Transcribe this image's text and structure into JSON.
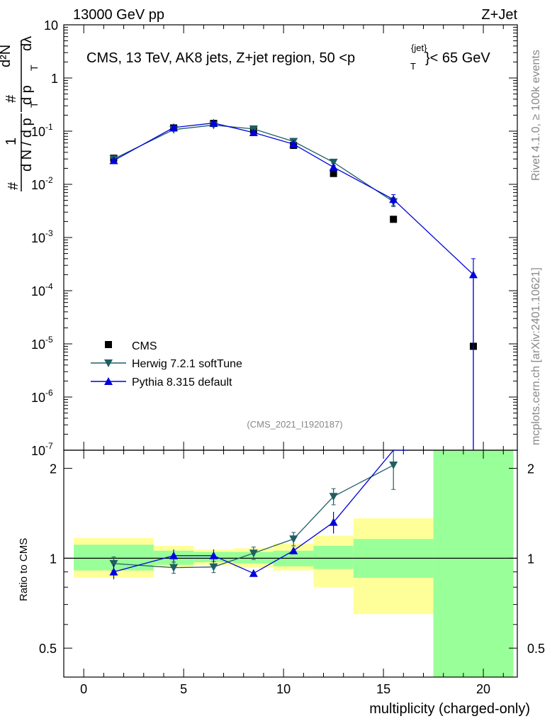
{
  "header": {
    "left": "13000 GeV pp",
    "right": "Z+Jet"
  },
  "side": {
    "top": "Rivet 4.1.0, ≥ 100k events",
    "bottom": "mcplots.cern.ch [arXiv:2401.10621]"
  },
  "colors": {
    "herwig": "#1f5f63",
    "pythia": "#0000dd",
    "cms": "#000000",
    "band_green": "#99ff99",
    "band_yellow": "#ffff99"
  },
  "chart_data": [
    {
      "type": "scatter",
      "panel": "main",
      "title": "CMS, 13 TeV, AK8 jets, Z+jet region, 50 <p",
      "title_sup": "{jet}",
      "title_sub": "T",
      "title_tail": "}< 65 GeV",
      "watermark": "(CMS_2021_I1920187)",
      "yscale": "log",
      "ylim": [
        1e-07,
        10
      ],
      "xlim": [
        -1,
        21.7
      ],
      "ylabel": {
        "pre": "#",
        "num_one": "1",
        "den_dn": "d N / d p",
        "den_t": "T",
        "num_d2n": "d²N",
        "hash": "#",
        "den2": "d p",
        "den2_t": "T",
        "den2_tail": "dλ"
      },
      "yticks": [
        {
          "v": 10,
          "b": "10",
          "e": ""
        },
        {
          "v": 1,
          "b": "1",
          "e": ""
        },
        {
          "v": 0.1,
          "b": "10",
          "e": "-1"
        },
        {
          "v": 0.01,
          "b": "10",
          "e": "-2"
        },
        {
          "v": 0.001,
          "b": "10",
          "e": "-3"
        },
        {
          "v": 0.0001,
          "b": "10",
          "e": "-4"
        },
        {
          "v": 1e-05,
          "b": "10",
          "e": "-5"
        },
        {
          "v": 1e-06,
          "b": "10",
          "e": "-6"
        },
        {
          "v": 1e-07,
          "b": "10",
          "e": "-7"
        }
      ],
      "legend": [
        "CMS",
        "Herwig 7.2.1 softTune",
        "Pythia 8.315 default"
      ],
      "series": [
        {
          "name": "CMS",
          "x": [
            1.5,
            4.5,
            6.5,
            8.5,
            10.5,
            12.5,
            15.5,
            19.5
          ],
          "y": [
            0.031,
            0.115,
            0.14,
            0.105,
            0.054,
            0.016,
            0.0022,
            9e-06
          ]
        },
        {
          "name": "Herwig 7.2.1 softTune",
          "x": [
            1.5,
            4.5,
            6.5,
            8.5,
            10.5,
            12.5,
            15.5
          ],
          "y": [
            0.03,
            0.107,
            0.13,
            0.11,
            0.064,
            0.026,
            0.0047
          ],
          "yerr": [
            0.0015,
            0.004,
            0.004,
            0.004,
            0.003,
            0.0015,
            0.0009
          ]
        },
        {
          "name": "Pythia 8.315 default",
          "x": [
            1.5,
            4.5,
            6.5,
            8.5,
            10.5,
            12.5,
            15.5,
            19.5
          ],
          "y": [
            0.028,
            0.117,
            0.142,
            0.094,
            0.057,
            0.021,
            0.0052,
            0.0002
          ],
          "yerr": [
            0.0015,
            0.004,
            0.004,
            0.004,
            0.003,
            0.0015,
            0.0012,
            0.0002
          ]
        }
      ]
    },
    {
      "type": "scatter",
      "panel": "ratio",
      "ylabel": "Ratio to CMS",
      "xlabel": "multiplicity (charged-only)",
      "ylim": [
        0.4,
        2.3
      ],
      "xlim": [
        -1,
        21.7
      ],
      "xticks": [
        0,
        5,
        10,
        15,
        20
      ],
      "yticks": [
        0.5,
        1,
        2
      ],
      "bands": [
        {
          "x0": -0.5,
          "x1": 3.5,
          "y0": 0.91,
          "y1": 1.11,
          "y0o": 0.86,
          "y1o": 1.17
        },
        {
          "x0": 3.5,
          "x1": 5.5,
          "y0": 0.95,
          "y1": 1.06,
          "y0o": 0.93,
          "y1o": 1.1
        },
        {
          "x0": 5.5,
          "x1": 7.5,
          "y0": 0.97,
          "y1": 1.05,
          "y0o": 0.95,
          "y1o": 1.07
        },
        {
          "x0": 7.5,
          "x1": 9.5,
          "y0": 0.96,
          "y1": 1.05,
          "y0o": 0.93,
          "y1o": 1.08
        },
        {
          "x0": 9.5,
          "x1": 11.5,
          "y0": 0.94,
          "y1": 1.06,
          "y0o": 0.91,
          "y1o": 1.12
        },
        {
          "x0": 11.5,
          "x1": 13.5,
          "y0": 0.92,
          "y1": 1.1,
          "y0o": 0.8,
          "y1o": 1.19
        },
        {
          "x0": 13.5,
          "x1": 17.5,
          "y0": 0.86,
          "y1": 1.16,
          "y0o": 0.65,
          "y1o": 1.36
        },
        {
          "x0": 17.5,
          "x1": 21.5,
          "y0": 0.4,
          "y1": 2.3,
          "y0o": 0.4,
          "y1o": 2.3
        }
      ],
      "series": [
        {
          "name": "Herwig 7.2.1 softTune",
          "x": [
            1.5,
            4.5,
            6.5,
            8.5,
            10.5,
            12.5,
            15.5
          ],
          "y": [
            0.96,
            0.93,
            0.935,
            1.04,
            1.16,
            1.61,
            2.05
          ],
          "yerr": [
            0.05,
            0.04,
            0.04,
            0.05,
            0.06,
            0.1,
            0.35
          ]
        },
        {
          "name": "Pythia 8.315 default",
          "x": [
            1.5,
            4.5,
            6.5,
            8.5,
            10.5,
            12.5,
            15.5,
            16.2
          ],
          "y": [
            0.9,
            1.02,
            1.02,
            0.89,
            1.06,
            1.32,
            2.3,
            2.3
          ],
          "yerr": [
            0.05,
            0.05,
            0.05,
            0.0,
            0.0,
            0.11,
            0.0,
            0.0
          ]
        }
      ]
    }
  ]
}
